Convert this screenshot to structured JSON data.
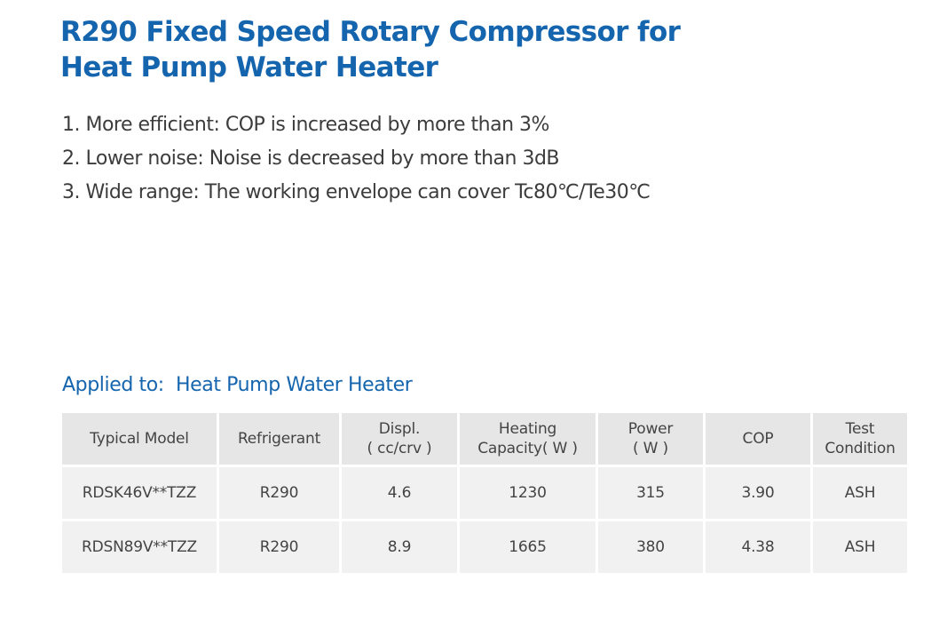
{
  "title": {
    "line1": "R290 Fixed Speed Rotary Compressor for",
    "line2": "Heat Pump Water Heater"
  },
  "features": [
    "1. More efficient: COP is increased by more than 3%",
    "2. Lower noise: Noise is decreased by more than 3dB",
    "3. Wide range: The working envelope can cover Tc80℃/Te30℃"
  ],
  "applied_to": "Applied to:  Heat Pump Water Heater",
  "table": {
    "headers": [
      [
        "Typical Model"
      ],
      [
        "Refrigerant"
      ],
      [
        "Displ.",
        "( cc/crv )"
      ],
      [
        "Heating",
        "Capacity( W )"
      ],
      [
        "Power",
        "( W )"
      ],
      [
        "COP"
      ],
      [
        "Test",
        "Condition"
      ]
    ],
    "rows": [
      [
        "RDSK46V**TZZ",
        "R290",
        "4.6",
        "1230",
        "315",
        "3.90",
        "ASH"
      ],
      [
        "RDSN89V**TZZ",
        "R290",
        "8.9",
        "1665",
        "380",
        "4.38",
        "ASH"
      ]
    ]
  },
  "colors": {
    "accent": "#1565ae",
    "header_bg": "#e6e6e6",
    "row_bg": "#f1f1f1"
  }
}
